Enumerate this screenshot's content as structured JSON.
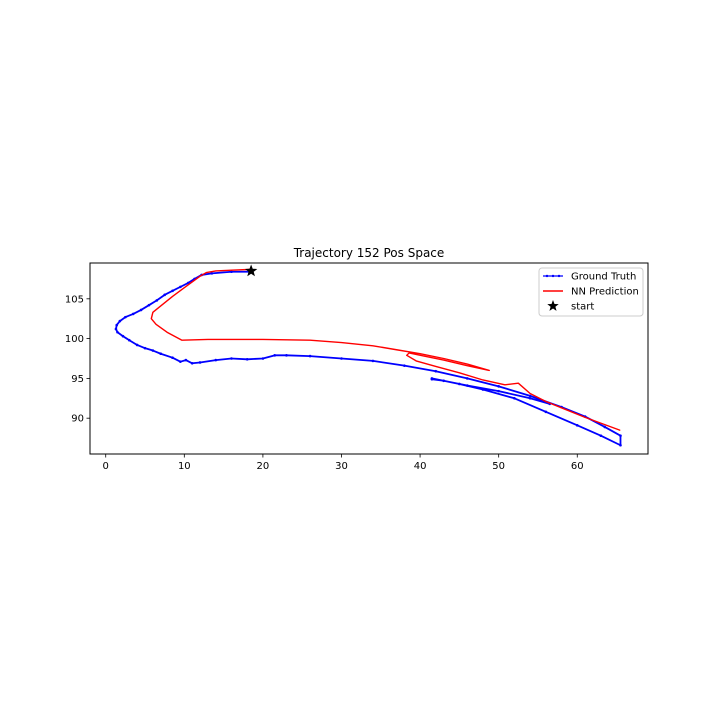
{
  "chart_data": {
    "type": "line",
    "title": "Trajectory 152 Pos Space",
    "xlabel": "",
    "ylabel": "",
    "xlim": [
      -2,
      69
    ],
    "ylim": [
      85.5,
      109.5
    ],
    "x_ticks": [
      0,
      10,
      20,
      30,
      40,
      50,
      60
    ],
    "y_ticks": [
      90,
      95,
      100,
      105
    ],
    "grid": false,
    "legend_position": "top-right",
    "series": [
      {
        "name": "Ground Truth",
        "color": "#0000ff",
        "marker": "dot",
        "x": [
          18.5,
          16,
          13.5,
          12.2,
          11.3,
          10.5,
          9.5,
          8.5,
          7.5,
          6.5,
          5.5,
          4.5,
          3.5,
          2.5,
          1.8,
          1.4,
          1.3,
          1.5,
          2.2,
          3,
          4,
          5,
          6,
          7,
          8.5,
          9.5,
          10.2,
          11,
          12,
          14,
          16,
          18,
          20,
          21.5,
          23,
          26,
          30,
          34,
          38,
          42,
          46,
          50,
          54,
          58,
          61,
          63.5,
          65.5,
          65.5,
          63,
          60,
          56,
          52,
          48,
          45,
          43,
          41.5,
          41.5,
          43,
          46,
          50,
          54,
          56.5
        ],
        "y": [
          108.4,
          108.4,
          108.2,
          108,
          107.5,
          107,
          106.5,
          106,
          105.5,
          104.8,
          104.2,
          103.6,
          103.1,
          102.7,
          102.2,
          101.7,
          101.2,
          100.8,
          100.3,
          99.8,
          99.2,
          98.8,
          98.5,
          98.1,
          97.6,
          97.1,
          97.3,
          96.9,
          97,
          97.3,
          97.5,
          97.4,
          97.5,
          97.9,
          97.9,
          97.8,
          97.5,
          97.2,
          96.6,
          95.9,
          95,
          94,
          92.8,
          91.4,
          90.2,
          88.9,
          87.8,
          86.6,
          87.8,
          89.1,
          90.8,
          92.5,
          93.6,
          94.3,
          94.7,
          95,
          94.9,
          94.7,
          94.1,
          93.4,
          92.5,
          91.8
        ]
      },
      {
        "name": "NN Prediction",
        "color": "#ff0000",
        "x": [
          18.5,
          16,
          14,
          12.8,
          12.1,
          11.4,
          10,
          8.5,
          7,
          6,
          5.8,
          6.4,
          7.8,
          9.7,
          13,
          20,
          26,
          30,
          34,
          37,
          40,
          43,
          46,
          48.8,
          46,
          43,
          40.5,
          38.6,
          38.3,
          39.5,
          42,
          45,
          48,
          50.8,
          52.5,
          54,
          56,
          58.5,
          61,
          63.2,
          65.4
        ],
        "y": [
          108.7,
          108.6,
          108.5,
          108.3,
          107.9,
          107.4,
          106.4,
          105.3,
          104.1,
          103.3,
          102.5,
          101.8,
          100.8,
          99.8,
          99.9,
          99.9,
          99.8,
          99.5,
          99.1,
          98.6,
          98.1,
          97.5,
          96.8,
          96,
          96.6,
          97.3,
          97.8,
          98.2,
          97.9,
          97.2,
          96.5,
          95.7,
          94.8,
          94.2,
          94.4,
          93.1,
          92.1,
          91.1,
          90.1,
          89.3,
          88.5
        ]
      }
    ],
    "points": [
      {
        "name": "start",
        "color": "#000000",
        "marker": "star",
        "x": 18.5,
        "y": 108.5
      }
    ]
  }
}
